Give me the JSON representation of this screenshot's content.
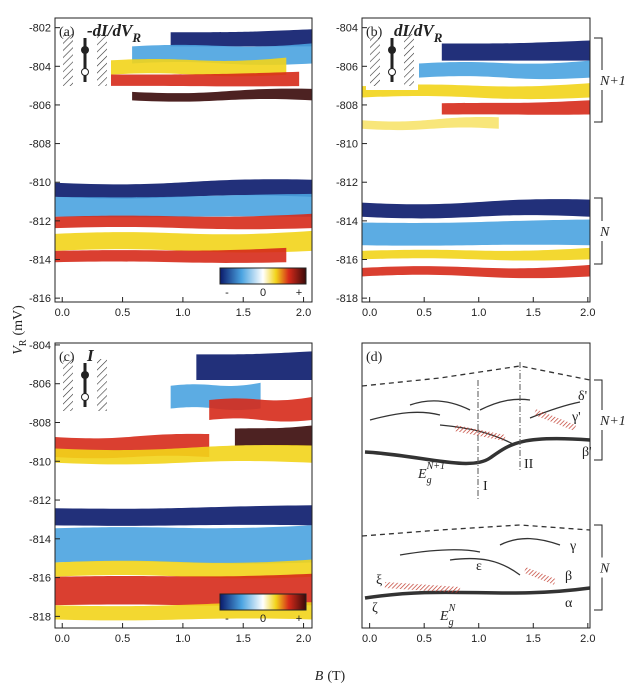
{
  "chart_data": [
    {
      "type": "heatmap",
      "label": "(a)",
      "title": "-dI/dV",
      "title_sub": "R",
      "xlim": [
        -0.06,
        2.07
      ],
      "xticks": [
        {
          "value": 0,
          "label": "0.0"
        },
        0.5,
        {
          "value": 1,
          "label": "1.0"
        },
        1.5,
        {
          "value": 2,
          "label": "2.0"
        }
      ],
      "ylim": [
        -816.2,
        -801.5
      ],
      "yticks": [
        -802,
        -804,
        -806,
        -808,
        -810,
        -812,
        -814,
        -816
      ],
      "colorbar": [
        "-",
        "0",
        "+"
      ]
    },
    {
      "type": "heatmap",
      "label": "(b)",
      "title": "dI/dV",
      "title_sub": "R",
      "xlim": [
        -0.07,
        2.02
      ],
      "xticks": [
        {
          "value": 0,
          "label": "0.0"
        },
        0.5,
        {
          "value": 1,
          "label": "1.0"
        },
        1.5,
        {
          "value": 2,
          "label": "2.0"
        }
      ],
      "ylim": [
        -818.2,
        -803.5
      ],
      "yticks": [
        -804,
        -806,
        -808,
        -810,
        -812,
        -814,
        -816,
        -818
      ],
      "brackets": [
        "N+1",
        "N"
      ]
    },
    {
      "type": "heatmap",
      "label": "(c)",
      "title": "I",
      "xlim": [
        -0.06,
        2.07
      ],
      "xticks": [
        {
          "value": 0,
          "label": "0.0"
        },
        0.5,
        {
          "value": 1,
          "label": "1.0"
        },
        1.5,
        {
          "value": 2,
          "label": "2.0"
        }
      ],
      "ylim": [
        -818.6,
        -803.9
      ],
      "yticks": [
        -804,
        -806,
        -808,
        -810,
        -812,
        -814,
        -816,
        -818
      ],
      "colorbar": [
        "-",
        "0",
        "+"
      ]
    },
    {
      "type": "schematic",
      "label": "(d)",
      "xlim": [
        -0.07,
        2.02
      ],
      "xticks": [
        {
          "value": 0,
          "label": "0.0"
        },
        0.5,
        {
          "value": 1,
          "label": "1.0"
        },
        1.5,
        {
          "value": 2,
          "label": "2.0"
        }
      ],
      "brackets": [
        "N+1",
        "N"
      ],
      "annotations": [
        "δ'",
        "γ'",
        "β'",
        "I",
        "II",
        "γ",
        "ε",
        "β",
        "ξ",
        "α",
        "ζ"
      ],
      "gap_labels": [
        {
          "base": "E",
          "sub": "g",
          "sup": "N+1"
        },
        {
          "base": "E",
          "sub": "g",
          "sup": "N"
        }
      ]
    }
  ],
  "y_axis_label": {
    "base": "V",
    "sub": "R",
    "unit": "(mV)"
  },
  "x_axis_label": {
    "base": "B",
    "unit": "(T)"
  }
}
